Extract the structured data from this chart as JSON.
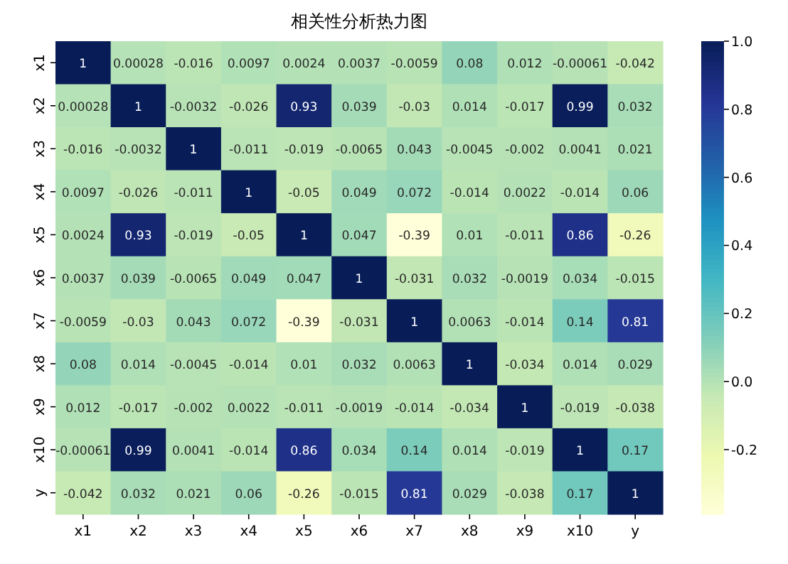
{
  "chart_data": {
    "type": "heatmap",
    "title": "相关性分析热力图",
    "categories": [
      "x1",
      "x2",
      "x3",
      "x4",
      "x5",
      "x6",
      "x7",
      "x8",
      "x9",
      "x10",
      "y"
    ],
    "y_categories": [
      "x1",
      "x2",
      "x3",
      "x4",
      "x5",
      "x6",
      "x7",
      "x8",
      "x9",
      "x10",
      "y"
    ],
    "cells": [
      [
        1,
        0.00028,
        -0.016,
        0.0097,
        0.0024,
        0.0037,
        -0.0059,
        0.08,
        0.012,
        -0.00061,
        -0.042
      ],
      [
        0.00028,
        1,
        -0.0032,
        -0.026,
        0.93,
        0.039,
        -0.03,
        0.014,
        -0.017,
        0.99,
        0.032
      ],
      [
        -0.016,
        -0.0032,
        1,
        -0.011,
        -0.019,
        -0.0065,
        0.043,
        -0.0045,
        -0.002,
        0.0041,
        0.021
      ],
      [
        0.0097,
        -0.026,
        -0.011,
        1,
        -0.05,
        0.049,
        0.072,
        -0.014,
        0.0022,
        -0.014,
        0.06
      ],
      [
        0.0024,
        0.93,
        -0.019,
        -0.05,
        1,
        0.047,
        -0.39,
        0.01,
        -0.011,
        0.86,
        -0.26
      ],
      [
        0.0037,
        0.039,
        -0.0065,
        0.049,
        0.047,
        1,
        -0.031,
        0.032,
        -0.0019,
        0.034,
        -0.015
      ],
      [
        -0.0059,
        -0.03,
        0.043,
        0.072,
        -0.39,
        -0.031,
        1,
        0.0063,
        -0.014,
        0.14,
        0.81
      ],
      [
        0.08,
        0.014,
        -0.0045,
        -0.014,
        0.01,
        0.032,
        0.0063,
        1,
        -0.034,
        0.014,
        0.029
      ],
      [
        0.012,
        -0.017,
        -0.002,
        0.0022,
        -0.011,
        -0.0019,
        -0.014,
        -0.034,
        1,
        -0.019,
        -0.038
      ],
      [
        -0.00061,
        0.99,
        0.0041,
        -0.014,
        0.86,
        0.034,
        0.14,
        0.014,
        -0.019,
        1,
        0.17
      ],
      [
        -0.042,
        0.032,
        0.021,
        0.06,
        -0.26,
        -0.015,
        0.81,
        0.029,
        -0.038,
        0.17,
        1
      ]
    ],
    "clim": [
      -0.39,
      1
    ],
    "cticks": [
      {
        "value": -0.2,
        "label": "-0.2"
      },
      {
        "value": 0,
        "label": "0.0"
      },
      {
        "value": 0.2,
        "label": "0.2"
      },
      {
        "value": 0.4,
        "label": "0.4"
      },
      {
        "value": 0.6,
        "label": "0.6"
      },
      {
        "value": 0.8,
        "label": "0.8"
      },
      {
        "value": 1,
        "label": "1.0"
      }
    ],
    "data_labels": true
  }
}
